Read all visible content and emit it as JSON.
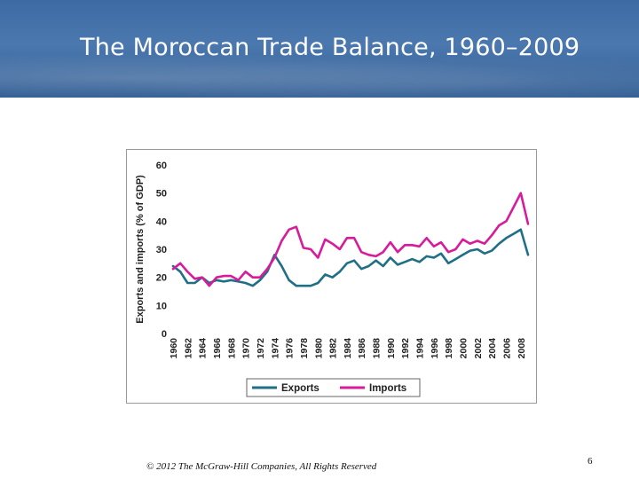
{
  "slide": {
    "title": "The Moroccan Trade Balance, 1960–2009",
    "footer": "© 2012 The McGraw-Hill Companies, All Rights Reserved",
    "page_number": "6"
  },
  "chart_data": {
    "type": "line",
    "title": "",
    "xlabel": "",
    "ylabel": "Exports and imports (% of GDP)",
    "ylim": [
      0,
      60
    ],
    "yticks": [
      0,
      10,
      20,
      30,
      40,
      50,
      60
    ],
    "xticks": [
      "1960",
      "1962",
      "1964",
      "1966",
      "1968",
      "1970",
      "1972",
      "1974",
      "1976",
      "1978",
      "1980",
      "1982",
      "1984",
      "1986",
      "1988",
      "1990",
      "1992",
      "1994",
      "1996",
      "1998",
      "2000",
      "2002",
      "2004",
      "2006",
      "2008"
    ],
    "grid": false,
    "legend_position": "bottom",
    "x": [
      1960,
      1961,
      1962,
      1963,
      1964,
      1965,
      1966,
      1967,
      1968,
      1969,
      1970,
      1971,
      1972,
      1973,
      1974,
      1975,
      1976,
      1977,
      1978,
      1979,
      1980,
      1981,
      1982,
      1983,
      1984,
      1985,
      1986,
      1987,
      1988,
      1989,
      1990,
      1991,
      1992,
      1993,
      1994,
      1995,
      1996,
      1997,
      1998,
      1999,
      2000,
      2001,
      2002,
      2003,
      2004,
      2005,
      2006,
      2007,
      2008,
      2009
    ],
    "series": [
      {
        "name": "Exports",
        "color": "#1f6f86",
        "values": [
          24,
          22,
          18,
          18,
          20,
          18,
          19,
          18.5,
          19,
          18.5,
          18,
          17,
          19,
          22,
          28,
          24,
          19,
          17,
          17,
          17,
          18,
          21,
          20,
          22,
          25,
          26,
          23,
          24,
          26,
          24,
          27,
          24.5,
          25.5,
          26.5,
          25.5,
          27.5,
          27,
          28.5,
          25,
          26.5,
          28,
          29.5,
          30,
          28.5,
          29.5,
          32,
          34,
          35.5,
          37,
          28
        ]
      },
      {
        "name": "Imports",
        "color": "#d81b9a",
        "values": [
          23,
          25,
          22,
          19.5,
          20,
          17,
          20,
          20.5,
          20.5,
          19,
          22,
          20,
          20,
          23,
          27,
          33,
          37,
          38,
          30.5,
          30,
          27,
          33.5,
          32,
          30,
          34,
          34,
          29,
          28,
          27.5,
          29,
          32.5,
          29,
          31.5,
          31.5,
          31,
          34,
          31,
          32.5,
          29,
          30,
          33.5,
          32,
          33,
          32,
          35,
          38.5,
          40,
          45,
          50,
          39
        ]
      }
    ]
  }
}
